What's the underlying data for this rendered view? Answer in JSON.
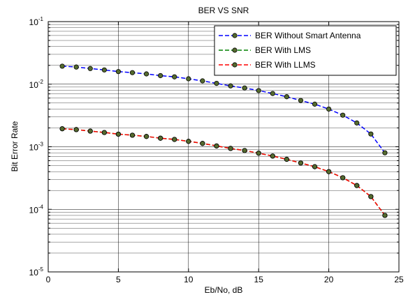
{
  "chart_data": {
    "type": "line",
    "title": "BER VS SNR",
    "xlabel": "Eb/No, dB",
    "ylabel": "Bit Error Rate",
    "xlim": [
      0,
      25
    ],
    "ylim": [
      1e-05,
      0.1
    ],
    "yscale": "log",
    "grid": true,
    "legend_position": "top-right",
    "x_ticks": [
      "0",
      "5",
      "10",
      "15",
      "20",
      "25"
    ],
    "y_ticks": [
      {
        "base": "10",
        "exp": "-5"
      },
      {
        "base": "10",
        "exp": "-4"
      },
      {
        "base": "10",
        "exp": "-3"
      },
      {
        "base": "10",
        "exp": "-2"
      },
      {
        "base": "10",
        "exp": "-1"
      }
    ],
    "x": [
      1,
      2,
      3,
      4,
      5,
      6,
      7,
      8,
      9,
      10,
      11,
      12,
      13,
      14,
      15,
      16,
      17,
      18,
      19,
      20,
      21,
      22,
      23,
      24
    ],
    "series": [
      {
        "name": "BER Without Smart Antenna",
        "color": "#0000ff",
        "marker_color": "#556b2f",
        "values": [
          0.0194,
          0.0188,
          0.0178,
          0.0169,
          0.0159,
          0.0153,
          0.0146,
          0.0137,
          0.0131,
          0.0122,
          0.0113,
          0.0103,
          0.0094,
          0.0087,
          0.0079,
          0.0071,
          0.0063,
          0.0055,
          0.0048,
          0.004,
          0.0032,
          0.0024,
          0.0016,
          0.0008
        ]
      },
      {
        "name": "BER With LMS",
        "color": "#008000",
        "marker_color": "#556b2f",
        "values": [
          0.00194,
          0.00188,
          0.00178,
          0.00169,
          0.00159,
          0.00153,
          0.00146,
          0.00137,
          0.00131,
          0.00122,
          0.00113,
          0.00103,
          0.00094,
          0.00087,
          0.00079,
          0.00071,
          0.00063,
          0.00055,
          0.00048,
          0.0004,
          0.00032,
          0.00024,
          0.00016,
          8e-05
        ]
      },
      {
        "name": "BER With LLMS",
        "color": "#ff0000",
        "marker_color": "#556b2f",
        "values": [
          0.00194,
          0.00188,
          0.00178,
          0.00169,
          0.00159,
          0.00153,
          0.00146,
          0.00137,
          0.00131,
          0.00122,
          0.00113,
          0.00103,
          0.00094,
          0.00087,
          0.00079,
          0.00071,
          0.00063,
          0.00055,
          0.00048,
          0.0004,
          0.00032,
          0.00024,
          0.00016,
          8e-05
        ]
      }
    ]
  }
}
